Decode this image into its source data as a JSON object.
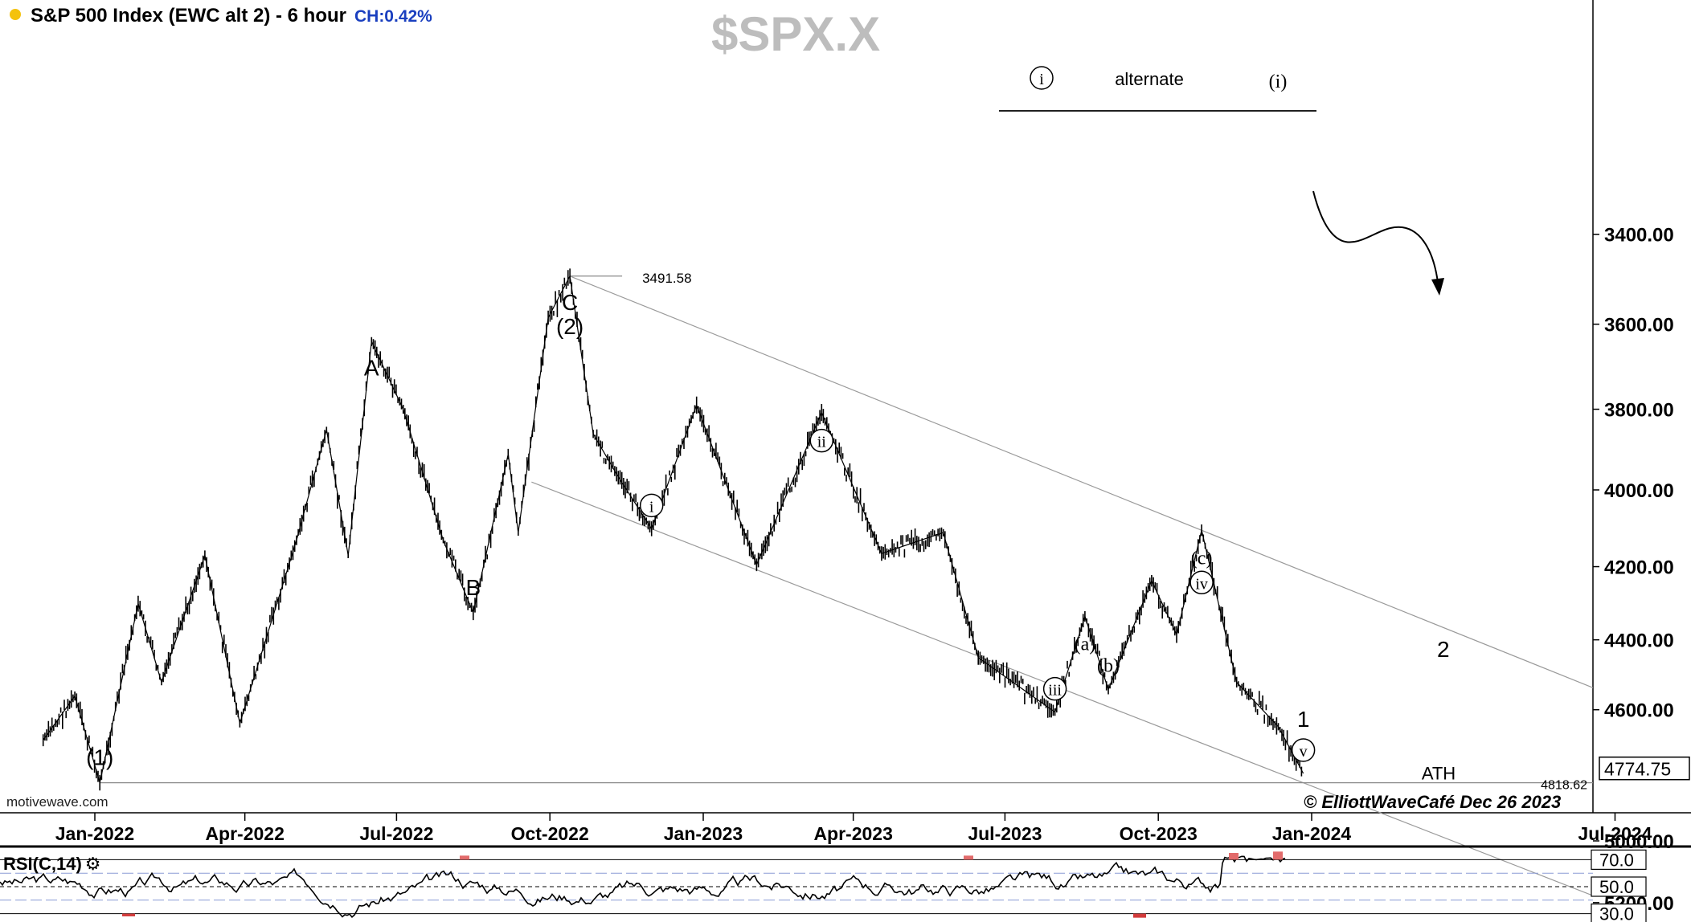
{
  "header": {
    "title": "S&P 500 Index (EWC alt 2) - 6 hour",
    "change": "CH:0.42%",
    "watermark": "$SPX.X",
    "source": "motivewave.com",
    "copyright": "© ElliottWaveCafé Dec 26 2023",
    "status_color": "#f4c20d"
  },
  "chart_data": {
    "type": "line",
    "price_axis": {
      "ticks": [
        3400,
        3600,
        3800,
        4000,
        4200,
        4400,
        4600,
        5000,
        5200
      ],
      "tick_labels": [
        "3400.00",
        "3600.00",
        "3800.00",
        "4000.00",
        "4200.00",
        "4400.00",
        "4600.00",
        "5000.00",
        "5200.00"
      ],
      "current_price": "4774.75",
      "ath_price": "4818.62",
      "ath_label": "ATH",
      "low_label": "3491.58"
    },
    "time_axis": {
      "labels": [
        "Jan-2022",
        "Apr-2022",
        "Jul-2022",
        "Oct-2022",
        "Jan-2023",
        "Apr-2023",
        "Jul-2023",
        "Oct-2023",
        "Jan-2024",
        "Jul-2024"
      ]
    },
    "price_path": [
      [
        "2021-12-01",
        4690
      ],
      [
        "2021-12-20",
        4560
      ],
      [
        "2022-01-04",
        4818.62
      ],
      [
        "2022-01-27",
        4300
      ],
      [
        "2022-02-10",
        4520
      ],
      [
        "2022-03-08",
        4170
      ],
      [
        "2022-03-29",
        4640
      ],
      [
        "2022-05-02",
        4130
      ],
      [
        "2022-05-20",
        3850
      ],
      [
        "2022-06-02",
        4170
      ],
      [
        "2022-06-16",
        3640
      ],
      [
        "2022-07-05",
        3800
      ],
      [
        "2022-07-29",
        4130
      ],
      [
        "2022-08-16",
        4325
      ],
      [
        "2022-09-06",
        3910
      ],
      [
        "2022-09-12",
        4110
      ],
      [
        "2022-09-30",
        3585
      ],
      [
        "2022-10-13",
        3491.58
      ],
      [
        "2022-10-27",
        3860
      ],
      [
        "2022-11-10",
        3960
      ],
      [
        "2022-12-01",
        4100
      ],
      [
        "2022-12-28",
        3790
      ],
      [
        "2023-02-02",
        4195
      ],
      [
        "2023-03-13",
        3808
      ],
      [
        "2023-04-18",
        4165
      ],
      [
        "2023-05-25",
        4110
      ],
      [
        "2023-06-15",
        4450
      ],
      [
        "2023-07-31",
        4607
      ],
      [
        "2023-08-18",
        4335
      ],
      [
        "2023-09-01",
        4541
      ],
      [
        "2023-09-27",
        4238
      ],
      [
        "2023-10-12",
        4385
      ],
      [
        "2023-10-27",
        4104
      ],
      [
        "2023-11-17",
        4520
      ],
      [
        "2023-12-12",
        4650
      ],
      [
        "2023-12-27",
        4790
      ]
    ],
    "wave_labels": [
      {
        "text": "(1)",
        "date": "2022-01-04",
        "price": 4818.62,
        "pos": "above"
      },
      {
        "text": "A",
        "date": "2022-06-16",
        "price": 3640,
        "pos": "below"
      },
      {
        "text": "B",
        "date": "2022-08-16",
        "price": 4325,
        "pos": "above"
      },
      {
        "text": "C",
        "date": "2022-10-13",
        "price": 3491.58,
        "pos": "below"
      },
      {
        "text": "(2)",
        "date": "2022-10-13",
        "price": 3491.58,
        "pos": "below2"
      },
      {
        "text": "i",
        "date": "2022-12-01",
        "price": 4100,
        "pos": "above",
        "circled": true
      },
      {
        "text": "ii",
        "date": "2023-03-13",
        "price": 3808,
        "pos": "below",
        "circled": true
      },
      {
        "text": "iii",
        "date": "2023-07-31",
        "price": 4607,
        "pos": "above",
        "circled": true
      },
      {
        "text": "(a)",
        "date": "2023-08-18",
        "price": 4335,
        "pos": "below"
      },
      {
        "text": "(b)",
        "date": "2023-09-01",
        "price": 4541,
        "pos": "above"
      },
      {
        "text": "(c)",
        "date": "2023-10-27",
        "price": 4104,
        "pos": "below"
      },
      {
        "text": "iv",
        "date": "2023-10-27",
        "price": 4104,
        "pos": "below2",
        "circled": true
      },
      {
        "text": "v",
        "date": "2023-12-27",
        "price": 4790,
        "pos": "above",
        "circled": true
      },
      {
        "text": "1",
        "date": "2023-12-27",
        "price": 4790,
        "pos": "above2"
      },
      {
        "text": "2",
        "date": "2024-03-20",
        "price": 4430,
        "pos": "on"
      }
    ],
    "legend": {
      "left_symbol": "i",
      "middle": "alternate",
      "right_symbol": "(i)"
    },
    "rsi": {
      "label": "RSI(C,14)",
      "levels": [
        "70.0",
        "50.0",
        "30.0"
      ],
      "colors": {
        "overbought": "#e26b6b",
        "oversold": "#d23b3b"
      }
    }
  }
}
